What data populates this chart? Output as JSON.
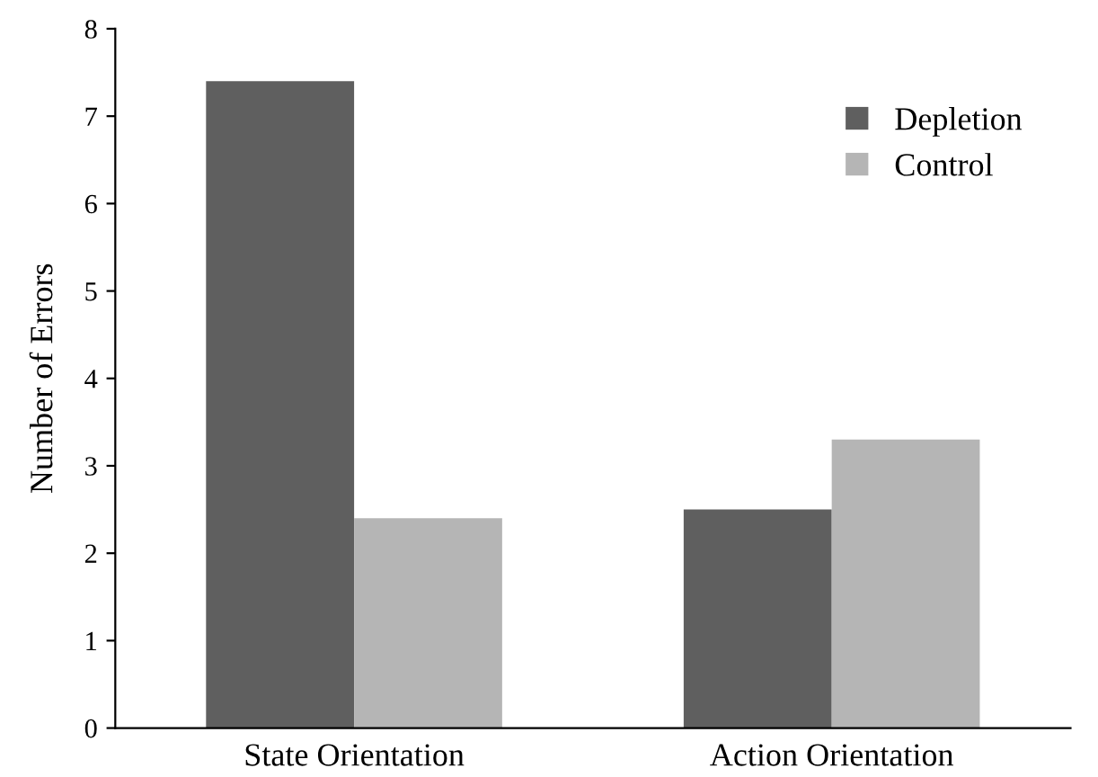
{
  "chart_data": {
    "type": "bar",
    "ylabel": "Number of Errors",
    "categories": [
      "State Orientation",
      "Action Orientation"
    ],
    "series": [
      {
        "name": "Depletion",
        "color": "#5f5f5f",
        "values": [
          7.4,
          2.5
        ]
      },
      {
        "name": "Control",
        "color": "#b5b5b5",
        "values": [
          2.4,
          3.3
        ]
      }
    ],
    "ylim": [
      0,
      8
    ],
    "yticks": [
      0,
      1,
      2,
      3,
      4,
      5,
      6,
      7,
      8
    ],
    "grid": false,
    "legend": "top right"
  }
}
